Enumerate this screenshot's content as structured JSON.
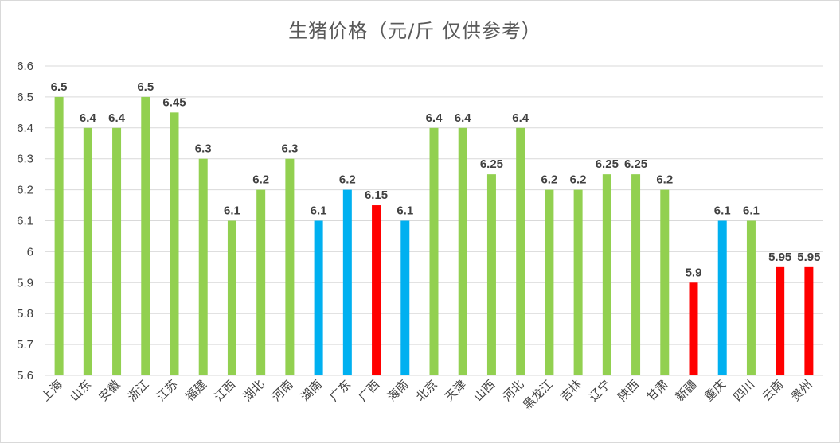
{
  "chart_data": {
    "type": "bar",
    "title": "生猪价格（元/斤 仅供参考）",
    "xlabel": "",
    "ylabel": "",
    "ylim": [
      5.6,
      6.6
    ],
    "yticks": [
      "5.6",
      "5.7",
      "5.8",
      "5.9",
      "6",
      "6.1",
      "6.2",
      "6.3",
      "6.4",
      "6.5",
      "6.6"
    ],
    "grid": true,
    "colors": {
      "green": "#92d050",
      "blue": "#00b0f0",
      "red": "#ff0000"
    },
    "bars": [
      {
        "category": "上海",
        "value": 6.5,
        "label": "6.5",
        "color": "green"
      },
      {
        "category": "山东",
        "value": 6.4,
        "label": "6.4",
        "color": "green"
      },
      {
        "category": "安徽",
        "value": 6.4,
        "label": "6.4",
        "color": "green"
      },
      {
        "category": "浙江",
        "value": 6.5,
        "label": "6.5",
        "color": "green"
      },
      {
        "category": "江苏",
        "value": 6.45,
        "label": "6.45",
        "color": "green"
      },
      {
        "category": "福建",
        "value": 6.3,
        "label": "6.3",
        "color": "green"
      },
      {
        "category": "江西",
        "value": 6.1,
        "label": "6.1",
        "color": "green"
      },
      {
        "category": "湖北",
        "value": 6.2,
        "label": "6.2",
        "color": "green"
      },
      {
        "category": "河南",
        "value": 6.3,
        "label": "6.3",
        "color": "green"
      },
      {
        "category": "湖南",
        "value": 6.1,
        "label": "6.1",
        "color": "blue"
      },
      {
        "category": "广东",
        "value": 6.2,
        "label": "6.2",
        "color": "blue"
      },
      {
        "category": "广西",
        "value": 6.15,
        "label": "6.15",
        "color": "red"
      },
      {
        "category": "海南",
        "value": 6.1,
        "label": "6.1",
        "color": "blue"
      },
      {
        "category": "北京",
        "value": 6.4,
        "label": "6.4",
        "color": "green"
      },
      {
        "category": "天津",
        "value": 6.4,
        "label": "6.4",
        "color": "green"
      },
      {
        "category": "山西",
        "value": 6.25,
        "label": "6.25",
        "color": "green"
      },
      {
        "category": "河北",
        "value": 6.4,
        "label": "6.4",
        "color": "green"
      },
      {
        "category": "黑龙江",
        "value": 6.2,
        "label": "6.2",
        "color": "green"
      },
      {
        "category": "吉林",
        "value": 6.2,
        "label": "6.2",
        "color": "green"
      },
      {
        "category": "辽宁",
        "value": 6.25,
        "label": "6.25",
        "color": "green"
      },
      {
        "category": "陕西",
        "value": 6.25,
        "label": "6.25",
        "color": "green"
      },
      {
        "category": "甘肃",
        "value": 6.2,
        "label": "6.2",
        "color": "green"
      },
      {
        "category": "新疆",
        "value": 5.9,
        "label": "5.9",
        "color": "red"
      },
      {
        "category": "重庆",
        "value": 6.1,
        "label": "6.1",
        "color": "blue"
      },
      {
        "category": "四川",
        "value": 6.1,
        "label": "6.1",
        "color": "green"
      },
      {
        "category": "云南",
        "value": 5.95,
        "label": "5.95",
        "color": "red"
      },
      {
        "category": "贵州",
        "value": 5.95,
        "label": "5.95",
        "color": "red"
      }
    ]
  }
}
